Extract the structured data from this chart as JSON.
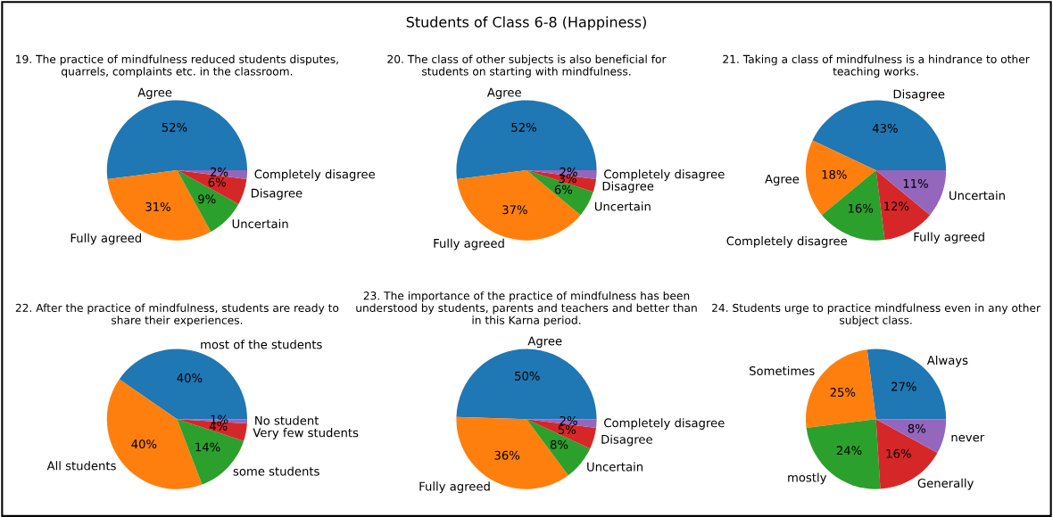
{
  "chart_data": [
    {
      "type": "pie",
      "annotations": [
        "Students of Class 6-8 (Happiness)"
      ],
      "title": "19. The practice of mindfulness reduced students disputes,\nquarrels, complaints etc. in the classroom.",
      "categories": [
        "Agree",
        "Fully agreed",
        "Uncertain",
        "Disagree",
        "Completely disagree"
      ],
      "values": [
        52,
        31,
        9,
        6,
        2
      ],
      "value_labels": [
        "52%",
        "31%",
        "9%",
        "6%",
        "2%"
      ],
      "colors": [
        "#1f77b4",
        "#ff7f0e",
        "#2ca02c",
        "#d62728",
        "#9467bd"
      ]
    },
    {
      "type": "pie",
      "title": "20. The class of other subjects is also beneficial for\nstudents on starting with mindfulness.",
      "categories": [
        "Agree",
        "Fully agreed",
        "Uncertain",
        "Disagree",
        "Completely disagree"
      ],
      "values": [
        52,
        37,
        6,
        3,
        2
      ],
      "value_labels": [
        "52%",
        "37%",
        "6%",
        "3%",
        "2%"
      ],
      "colors": [
        "#1f77b4",
        "#ff7f0e",
        "#2ca02c",
        "#d62728",
        "#9467bd"
      ]
    },
    {
      "type": "pie",
      "title": "21. Taking a class of mindfulness is a hindrance to other\nteaching works.",
      "categories": [
        "Disagree",
        "Agree",
        "Completely disagree",
        "Fully agreed",
        "Uncertain"
      ],
      "values": [
        43,
        18,
        16,
        12,
        11
      ],
      "value_labels": [
        "43%",
        "18%",
        "16%",
        "12%",
        "11%"
      ],
      "colors": [
        "#1f77b4",
        "#ff7f0e",
        "#2ca02c",
        "#d62728",
        "#9467bd"
      ]
    },
    {
      "type": "pie",
      "title": "22. After the practice of mindfulness, students are ready to\nshare their experiences.",
      "categories": [
        "most of the students",
        "All students",
        "some students",
        "Very few students",
        "No student"
      ],
      "values": [
        40,
        40,
        14,
        4,
        1
      ],
      "value_labels": [
        "40%",
        "40%",
        "14%",
        "4%",
        "1%"
      ],
      "colors": [
        "#1f77b4",
        "#ff7f0e",
        "#2ca02c",
        "#d62728",
        "#9467bd"
      ]
    },
    {
      "type": "pie",
      "title": "23. The importance of the practice of mindfulness has been\nunderstood by students, parents and teachers and better than\nin this Karna period.",
      "categories": [
        "Agree",
        "Fully agreed",
        "Uncertain",
        "Disagree",
        "Completely disagree"
      ],
      "values": [
        50,
        36,
        8,
        5,
        2
      ],
      "value_labels": [
        "50%",
        "36%",
        "8%",
        "5%",
        "2%"
      ],
      "colors": [
        "#1f77b4",
        "#ff7f0e",
        "#2ca02c",
        "#d62728",
        "#9467bd"
      ]
    },
    {
      "type": "pie",
      "title": "24. Students urge to practice mindfulness even in any other\nsubject class.",
      "categories": [
        "Always",
        "Sometimes",
        "mostly",
        "Generally",
        "never"
      ],
      "values": [
        27,
        25,
        24,
        16,
        8
      ],
      "value_labels": [
        "27%",
        "25%",
        "24%",
        "16%",
        "8%"
      ],
      "colors": [
        "#1f77b4",
        "#ff7f0e",
        "#2ca02c",
        "#d62728",
        "#9467bd"
      ]
    }
  ]
}
